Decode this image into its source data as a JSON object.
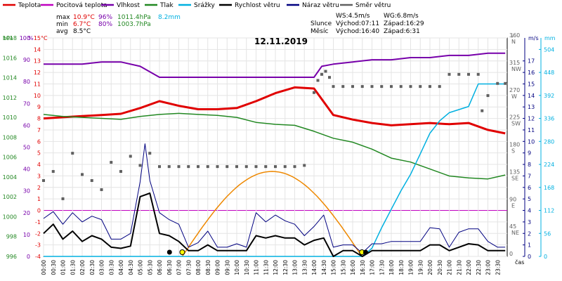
{
  "chart_data": {
    "type": "line",
    "title": "12.11.2019",
    "legend": [
      {
        "name": "Teplota",
        "color": "#e00000"
      },
      {
        "name": "Pocitová teplota",
        "color": "#c000c0"
      },
      {
        "name": "Vlhkost",
        "color": "#7700aa"
      },
      {
        "name": "Tlak",
        "color": "#228822"
      },
      {
        "name": "Srážky",
        "color": "#00b0e0"
      },
      {
        "name": "Rychlost větru",
        "color": "#000000"
      },
      {
        "name": "Náraz větru",
        "color": "#000080"
      },
      {
        "name": "Směr větru",
        "color": "#606060"
      }
    ],
    "legend_position": "top",
    "stats": {
      "max": {
        "label": "max",
        "temp": "10.9°C",
        "hum": "96%",
        "press": "1011.4hPa",
        "rain": "8.2mm"
      },
      "min": {
        "label": "min",
        "temp": "6.7°C",
        "hum": "80%",
        "press": "1003.7hPa"
      },
      "avg": {
        "label": "avg",
        "temp": "8.5°C"
      }
    },
    "wind_info": {
      "ws": "WS:4.5m/s",
      "wg": "WG:6.8m/s"
    },
    "sun": {
      "label": "Slunce",
      "rise": "Východ:07:11",
      "set": "Západ:16:29"
    },
    "moon": {
      "label": "Měsíc",
      "rise": "Východ:16:40",
      "set": "Západ:6:31"
    },
    "axes": {
      "hpa_label": "hPa",
      "pct_label": "%",
      "temp_label": "°C",
      "deg_label": "°",
      "ms_label": "m/s",
      "mm_label": "mm",
      "x_label": "čas",
      "temp_ticks": [
        15,
        14,
        13,
        12,
        11,
        10,
        9,
        8,
        7,
        6,
        5,
        4,
        3,
        2,
        1,
        0,
        -1,
        -2,
        -3,
        -4
      ],
      "temp_range": [
        -4,
        15
      ],
      "pct_ticks": [
        100,
        90,
        80,
        70,
        60,
        50,
        40,
        30,
        20,
        10,
        0
      ],
      "hpa_ticks": [
        1018,
        1016,
        1014,
        1012,
        1010,
        1008,
        1006,
        1004,
        1002,
        1000,
        998,
        996
      ],
      "hpa_range": [
        996,
        1018
      ],
      "dir_ticks": [
        360,
        315,
        270,
        225,
        180,
        135,
        90,
        45,
        0
      ],
      "dir_labels": [
        "N",
        "NW",
        "W",
        "SW",
        "S",
        "SE",
        "E",
        "NE",
        ""
      ],
      "ms_ticks": [
        17,
        16,
        15,
        14,
        13,
        12,
        11,
        10,
        9,
        8,
        7,
        6,
        5,
        4,
        3,
        2,
        1,
        0
      ],
      "mm_ticks": [
        504,
        448,
        392,
        336,
        280,
        224,
        168,
        112,
        56,
        0
      ],
      "time_ticks": [
        "00:00",
        "00:30",
        "01:00",
        "01:30",
        "02:00",
        "02:30",
        "03:00",
        "03:30",
        "04:00",
        "04:30",
        "05:00",
        "05:30",
        "06:00",
        "06:30",
        "07:00",
        "07:30",
        "08:00",
        "08:30",
        "09:00",
        "09:30",
        "10:00",
        "10:30",
        "11:00",
        "11:30",
        "12:00",
        "12:30",
        "13:00",
        "13:30",
        "14:00",
        "14:30",
        "15:00",
        "15:30",
        "16:00",
        "16:30",
        "17:00",
        "17:30",
        "18:00",
        "18:30",
        "19:00",
        "19:30",
        "20:00",
        "20:30",
        "21:00",
        "21:30",
        "22:00",
        "22:30",
        "23:00",
        "23:30"
      ],
      "grid": true
    },
    "series": [
      {
        "name": "Teplota",
        "unit": "°C",
        "color": "#e00000",
        "x": [
          0,
          1,
          2,
          3,
          4,
          5,
          6,
          7,
          8,
          9,
          10,
          11,
          12,
          13,
          14,
          15,
          16,
          17,
          18,
          19,
          20,
          21,
          22,
          23,
          23.9
        ],
        "y": [
          8,
          8.1,
          8.2,
          8.3,
          8.4,
          8.9,
          9.5,
          9.1,
          8.8,
          8.8,
          8.9,
          9.5,
          10.2,
          10.7,
          10.6,
          8.3,
          7.9,
          7.6,
          7.4,
          7.5,
          7.6,
          7.5,
          7.6,
          7.0,
          6.7
        ]
      },
      {
        "name": "Vlhkost",
        "unit": "%",
        "color": "#7700aa",
        "x": [
          0,
          1,
          2,
          3,
          4,
          5,
          6,
          7,
          8,
          9,
          10,
          11,
          12,
          13,
          14,
          14.4,
          15,
          16,
          17,
          18,
          19,
          20,
          21,
          22,
          23,
          23.9
        ],
        "y": [
          88,
          88,
          88,
          89,
          89,
          87,
          82,
          82,
          82,
          82,
          82,
          82,
          82,
          82,
          82,
          87,
          88,
          89,
          90,
          90,
          91,
          91,
          92,
          92,
          93,
          93
        ]
      },
      {
        "name": "Tlak",
        "unit": "hPa",
        "color": "#228822",
        "x": [
          0,
          1,
          2,
          3,
          4,
          5,
          6,
          7,
          8,
          9,
          10,
          11,
          12,
          13,
          14,
          15,
          16,
          17,
          18,
          19,
          20,
          21,
          22,
          23,
          23.9
        ],
        "y": [
          1010.3,
          1010.1,
          1010,
          1009.9,
          1009.8,
          1010.1,
          1010.3,
          1010.4,
          1010.3,
          1010.2,
          1010,
          1009.5,
          1009.3,
          1009.2,
          1008.6,
          1007.9,
          1007.5,
          1006.8,
          1005.9,
          1005.5,
          1004.8,
          1004.1,
          1003.9,
          1003.8,
          1004.2
        ]
      },
      {
        "name": "Srážky",
        "unit": "mm",
        "color": "#00b0e0",
        "x": [
          0,
          16.5,
          17,
          17.5,
          18,
          18.5,
          19,
          19.5,
          20,
          20.5,
          21,
          22,
          22.5,
          23,
          23.9
        ],
        "y": [
          0,
          0,
          20,
          70,
          115,
          160,
          200,
          250,
          300,
          330,
          350,
          365,
          420,
          420,
          420
        ]
      },
      {
        "name": "Rychlost větru",
        "unit": "m/s",
        "color": "#000000",
        "x": [
          0,
          0.5,
          1,
          1.5,
          2,
          2.5,
          3,
          3.5,
          4,
          4.5,
          5,
          5.5,
          6,
          6.5,
          7,
          7.5,
          8,
          8.5,
          9,
          9.5,
          10,
          10.5,
          11,
          11.5,
          12,
          12.5,
          13,
          13.5,
          14,
          14.5,
          15,
          15.5,
          16,
          16.5,
          17,
          17.5,
          18,
          18.5,
          19,
          19.5,
          20,
          20.5,
          21,
          21.5,
          22,
          22.5,
          23,
          23.5,
          23.9
        ],
        "y": [
          2,
          2.8,
          1.5,
          2.2,
          1.3,
          1.8,
          1.5,
          0.8,
          0.7,
          0.9,
          5.2,
          5.5,
          2,
          1.8,
          1.3,
          0.5,
          0.5,
          1,
          0.5,
          0.5,
          0.5,
          0.5,
          1.8,
          1.6,
          1.8,
          1.6,
          1.6,
          1,
          1.4,
          1.6,
          0,
          0.5,
          0.5,
          0,
          0.5,
          0.5,
          0.5,
          0.5,
          0.5,
          0.5,
          1,
          1,
          0.5,
          0.8,
          1.1,
          1,
          0.5,
          0.5,
          0.5
        ]
      },
      {
        "name": "Náraz větru",
        "unit": "m/s",
        "color": "#000080",
        "x": [
          0,
          0.5,
          1,
          1.5,
          2,
          2.5,
          3,
          3.5,
          4,
          4.5,
          5,
          5.25,
          5.5,
          6,
          6.5,
          7,
          7.5,
          8,
          8.5,
          9,
          9.5,
          10,
          10.5,
          11,
          11.5,
          12,
          12.5,
          13,
          13.5,
          14,
          14.5,
          15,
          15.5,
          16,
          16.5,
          17,
          17.5,
          18,
          18.5,
          19,
          19.5,
          20,
          20.5,
          21,
          21.5,
          22,
          22.5,
          23,
          23.5,
          23.9
        ],
        "y": [
          3.3,
          3.9,
          2.8,
          3.8,
          3,
          3.5,
          3.2,
          1.5,
          1.5,
          2,
          6.5,
          9.8,
          6.6,
          3.8,
          3.2,
          2.8,
          0.8,
          1.2,
          2.2,
          0.8,
          0.8,
          1.1,
          0.8,
          3.8,
          3,
          3.6,
          3.1,
          2.8,
          1.8,
          2.6,
          3.6,
          0.8,
          1,
          1,
          0.3,
          1.1,
          1.1,
          1.3,
          1.3,
          1.3,
          1.3,
          2.5,
          2.4,
          0.8,
          2.1,
          2.4,
          2.4,
          1.3,
          0.8,
          0.8
        ]
      },
      {
        "name": "Směr větru",
        "unit": "°",
        "color": "#606060",
        "x": [
          0,
          0.5,
          1,
          1.5,
          2,
          2.5,
          3,
          3.5,
          4,
          4.5,
          5,
          5.5,
          6,
          6.5,
          7,
          7.5,
          8,
          8.5,
          9,
          9.5,
          10,
          10.5,
          11,
          11.5,
          12,
          12.5,
          13,
          13.5,
          14,
          14.2,
          14.4,
          14.6,
          14.8,
          15,
          15.5,
          16,
          16.5,
          17,
          17.5,
          18,
          18.5,
          19,
          19.5,
          20,
          20.5,
          21,
          21.5,
          22,
          22.5,
          22.7,
          23,
          23.5,
          23.9
        ],
        "y": [
          125,
          140,
          95,
          170,
          135,
          125,
          110,
          155,
          140,
          165,
          150,
          170,
          148,
          148,
          148,
          148,
          148,
          148,
          148,
          148,
          148,
          148,
          148,
          148,
          148,
          148,
          148,
          150,
          270,
          290,
          300,
          305,
          295,
          280,
          280,
          280,
          280,
          280,
          280,
          280,
          280,
          280,
          280,
          280,
          280,
          300,
          300,
          300,
          300,
          240,
          265,
          285,
          285
        ]
      }
    ],
    "sun_arc": {
      "rise": 7.18,
      "set": 16.48,
      "color": "#ee8800"
    }
  }
}
